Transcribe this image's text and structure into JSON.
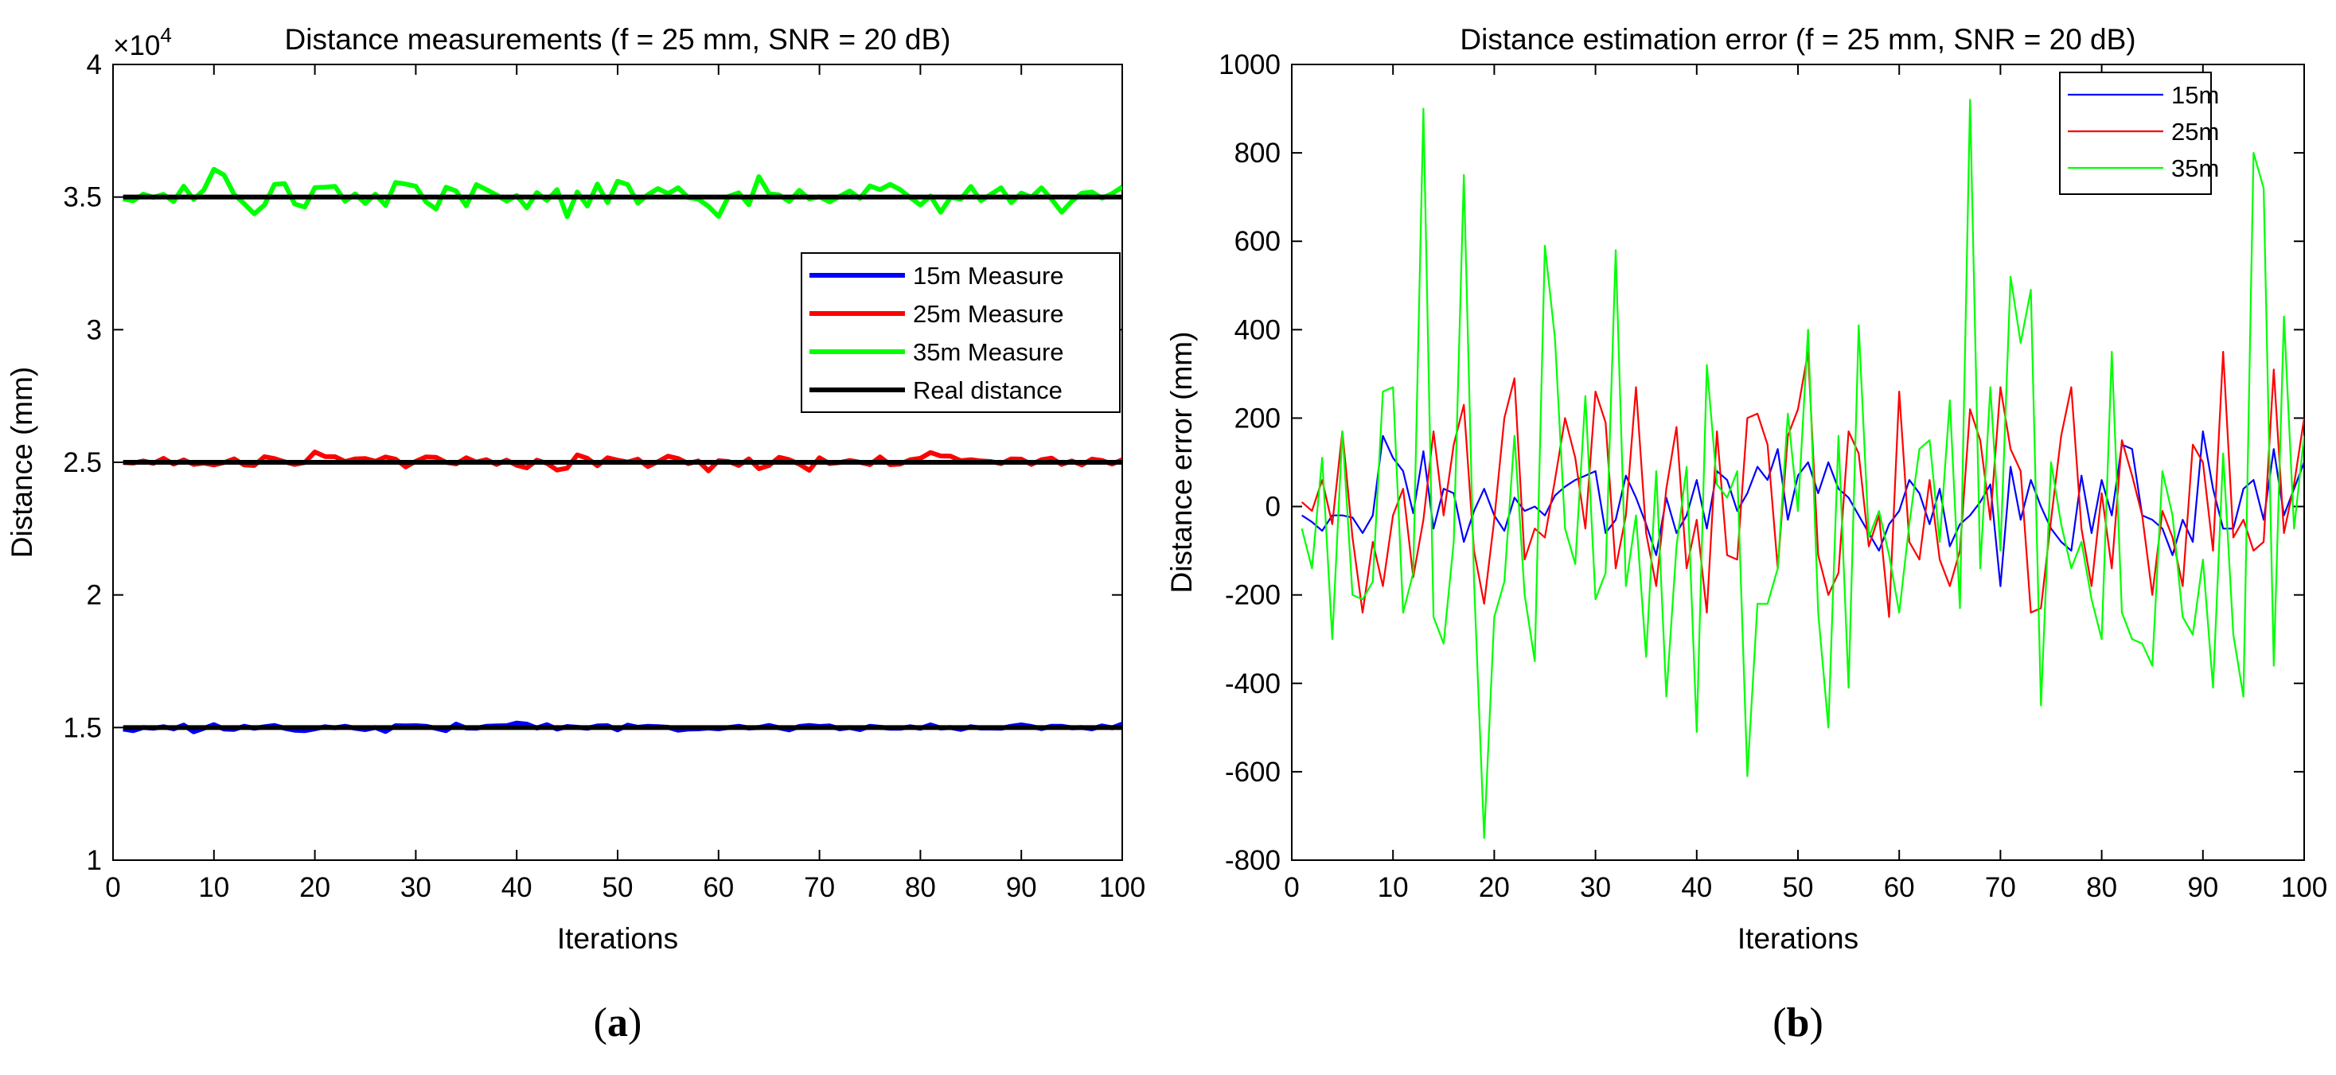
{
  "chart_data": [
    {
      "type": "line",
      "panel_label": "a",
      "title": "Distance measurements (f = 25 mm, SNR = 20 dB)",
      "xlabel": "Iterations",
      "ylabel": "Distance (mm)",
      "y_exponent_label": "×10",
      "y_exponent": "4",
      "xlim": [
        0,
        100
      ],
      "ylim": [
        1,
        4
      ],
      "xticks": [
        0,
        10,
        20,
        30,
        40,
        50,
        60,
        70,
        80,
        90,
        100
      ],
      "yticks": [
        1,
        1.5,
        2,
        2.5,
        3,
        3.5,
        4
      ],
      "ytick_labels": [
        "1",
        "1.5",
        "2",
        "2.5",
        "3",
        "3.5",
        "4"
      ],
      "legend_position": "center-right",
      "series": [
        {
          "name": "15m Measure",
          "color": "#0000ff",
          "values": [
            1.494,
            1.488,
            1.5,
            1.497,
            1.503,
            1.495,
            1.509,
            1.484,
            1.497,
            1.511,
            1.494,
            1.493,
            1.505,
            1.497,
            1.503,
            1.508,
            1.497,
            1.49,
            1.488,
            1.495,
            1.503,
            1.499,
            1.505,
            1.497,
            1.492,
            1.5,
            1.485,
            1.507,
            1.506,
            1.507,
            1.505,
            1.497,
            1.488,
            1.513,
            1.498,
            1.497,
            1.505,
            1.506,
            1.507,
            1.517,
            1.513,
            1.498,
            1.511,
            1.494,
            1.504,
            1.501,
            1.497,
            1.506,
            1.507,
            1.491,
            1.509,
            1.501,
            1.505,
            1.503,
            1.501,
            1.49,
            1.494,
            1.495,
            1.498,
            1.495,
            1.5,
            1.505,
            1.498,
            1.5,
            1.508,
            1.499,
            1.491,
            1.504,
            1.508,
            1.504,
            1.506,
            1.495,
            1.5,
            1.492,
            1.505,
            1.501,
            1.497,
            1.497,
            1.503,
            1.497,
            1.51,
            1.498,
            1.5,
            1.493,
            1.503,
            1.498,
            1.498,
            1.497,
            1.505,
            1.51,
            1.504,
            1.496,
            1.505,
            1.505,
            1.499,
            1.5,
            1.495,
            1.506,
            1.499,
            1.513
          ]
        },
        {
          "name": "25m Measure",
          "color": "#ff0000",
          "values": [
            2.499,
            2.497,
            2.505,
            2.496,
            2.515,
            2.493,
            2.509,
            2.492,
            2.497,
            2.49,
            2.499,
            2.513,
            2.49,
            2.488,
            2.521,
            2.514,
            2.502,
            2.492,
            2.499,
            2.539,
            2.522,
            2.521,
            2.503,
            2.513,
            2.514,
            2.504,
            2.52,
            2.512,
            2.483,
            2.504,
            2.52,
            2.519,
            2.5,
            2.494,
            2.517,
            2.501,
            2.51,
            2.492,
            2.508,
            2.489,
            2.479,
            2.508,
            2.496,
            2.471,
            2.478,
            2.528,
            2.515,
            2.487,
            2.517,
            2.508,
            2.501,
            2.512,
            2.484,
            2.502,
            2.523,
            2.514,
            2.495,
            2.505,
            2.468,
            2.506,
            2.503,
            2.488,
            2.513,
            2.476,
            2.488,
            2.519,
            2.51,
            2.493,
            2.47,
            2.517,
            2.495,
            2.499,
            2.507,
            2.5,
            2.491,
            2.52,
            2.491,
            2.493,
            2.51,
            2.515,
            2.537,
            2.524,
            2.523,
            2.506,
            2.51,
            2.505,
            2.503,
            2.495,
            2.513,
            2.512,
            2.492,
            2.51,
            2.516,
            2.492,
            2.505,
            2.49,
            2.512,
            2.507,
            2.493,
            2.51
          ]
        },
        {
          "name": "35m Measure",
          "color": "#00ff00",
          "values": [
            3.493,
            3.486,
            3.511,
            3.499,
            3.51,
            3.483,
            3.541,
            3.491,
            3.527,
            3.605,
            3.583,
            3.51,
            3.475,
            3.437,
            3.47,
            3.548,
            3.551,
            3.474,
            3.462,
            3.536,
            3.537,
            3.54,
            3.484,
            3.512,
            3.476,
            3.511,
            3.468,
            3.555,
            3.549,
            3.541,
            3.482,
            3.455,
            3.537,
            3.523,
            3.467,
            3.547,
            3.528,
            3.508,
            3.485,
            3.506,
            3.459,
            3.517,
            3.487,
            3.528,
            3.426,
            3.519,
            3.466,
            3.549,
            3.479,
            3.56,
            3.547,
            3.477,
            3.509,
            3.532,
            3.513,
            3.535,
            3.498,
            3.492,
            3.465,
            3.427,
            3.503,
            3.516,
            3.471,
            3.577,
            3.513,
            3.508,
            3.483,
            3.525,
            3.493,
            3.501,
            3.482,
            3.503,
            3.523,
            3.495,
            3.542,
            3.528,
            3.548,
            3.528,
            3.498,
            3.47,
            3.504,
            3.443,
            3.499,
            3.492,
            3.54,
            3.486,
            3.511,
            3.535,
            3.479,
            3.515,
            3.5,
            3.535,
            3.492,
            3.443,
            3.484,
            3.515,
            3.519,
            3.496,
            3.513,
            3.538
          ]
        },
        {
          "name": "Real distance",
          "color": "#000000",
          "x": [
            1,
            100
          ],
          "values": [
            [
              1.5,
              1.5
            ],
            [
              2.5,
              2.5
            ],
            [
              3.5,
              3.5
            ]
          ]
        }
      ]
    },
    {
      "type": "line",
      "panel_label": "b",
      "title": "Distance estimation error (f = 25 mm, SNR = 20 dB)",
      "xlabel": "Iterations",
      "ylabel": "Distance error (mm)",
      "xlim": [
        0,
        100
      ],
      "ylim": [
        -800,
        1000
      ],
      "xticks": [
        0,
        10,
        20,
        30,
        40,
        50,
        60,
        70,
        80,
        90,
        100
      ],
      "yticks": [
        -800,
        -600,
        -400,
        -200,
        0,
        200,
        400,
        600,
        800,
        1000
      ],
      "legend_position": "top-right",
      "series": [
        {
          "name": "15m",
          "color": "#0000ff",
          "values": [
            -20,
            -35,
            -55,
            -20,
            -20,
            -25,
            -60,
            -20,
            160,
            110,
            80,
            -15,
            125,
            -50,
            40,
            30,
            -80,
            -10,
            40,
            -20,
            -55,
            20,
            -10,
            0,
            -20,
            25,
            45,
            60,
            70,
            80,
            -60,
            -30,
            70,
            20,
            -40,
            -110,
            20,
            -60,
            -20,
            60,
            -50,
            80,
            60,
            -10,
            30,
            90,
            60,
            130,
            -30,
            70,
            100,
            30,
            100,
            40,
            20,
            -20,
            -60,
            -100,
            -40,
            -10,
            60,
            30,
            -40,
            40,
            -90,
            -40,
            -20,
            10,
            50,
            -180,
            90,
            -30,
            60,
            0,
            -50,
            -80,
            -100,
            70,
            -60,
            60,
            -20,
            140,
            130,
            -20,
            -30,
            -50,
            -110,
            -30,
            -80,
            170,
            40,
            -50,
            -50,
            40,
            60,
            -30,
            130,
            -20,
            40,
            100
          ]
        },
        {
          "name": "25m",
          "color": "#ff0000",
          "values": [
            10,
            -10,
            60,
            -40,
            170,
            -70,
            -240,
            -80,
            -180,
            -20,
            40,
            -160,
            -30,
            170,
            -20,
            140,
            230,
            -100,
            -220,
            -30,
            200,
            290,
            -120,
            -50,
            -70,
            60,
            200,
            110,
            -50,
            260,
            190,
            -140,
            -20,
            270,
            -60,
            -180,
            40,
            180,
            -140,
            -30,
            -240,
            170,
            -110,
            -120,
            200,
            210,
            140,
            -140,
            160,
            220,
            350,
            -110,
            -200,
            -150,
            170,
            120,
            -90,
            -20,
            -250,
            260,
            -80,
            -120,
            60,
            -120,
            -180,
            -100,
            220,
            150,
            -30,
            270,
            130,
            80,
            -240,
            -230,
            -30,
            160,
            270,
            -50,
            -180,
            30,
            -140,
            150,
            70,
            -20,
            -200,
            -10,
            -70,
            -180,
            140,
            100,
            -100,
            350,
            -70,
            -30,
            -100,
            -80,
            310,
            -60,
            50,
            200
          ]
        },
        {
          "name": "35m",
          "color": "#00ff00",
          "values": [
            -50,
            -140,
            110,
            -300,
            170,
            -200,
            -210,
            -170,
            260,
            270,
            -240,
            -150,
            900,
            -250,
            -310,
            -80,
            750,
            -170,
            -750,
            -250,
            -170,
            160,
            -200,
            -350,
            590,
            380,
            -50,
            -130,
            250,
            -210,
            -150,
            580,
            -180,
            -20,
            -340,
            80,
            -430,
            -90,
            90,
            -510,
            320,
            50,
            20,
            80,
            -610,
            -220,
            -220,
            -140,
            210,
            -10,
            400,
            -240,
            -500,
            160,
            -410,
            410,
            -70,
            -10,
            -110,
            -240,
            -40,
            130,
            150,
            -80,
            240,
            -230,
            920,
            -140,
            270,
            -100,
            520,
            370,
            490,
            -450,
            100,
            -40,
            -140,
            -80,
            -210,
            -300,
            350,
            -240,
            -300,
            -310,
            -360,
            80,
            -20,
            -250,
            -290,
            -120,
            -410,
            120,
            -290,
            -430,
            800,
            720,
            -360,
            430,
            -50,
            160
          ]
        }
      ]
    }
  ]
}
